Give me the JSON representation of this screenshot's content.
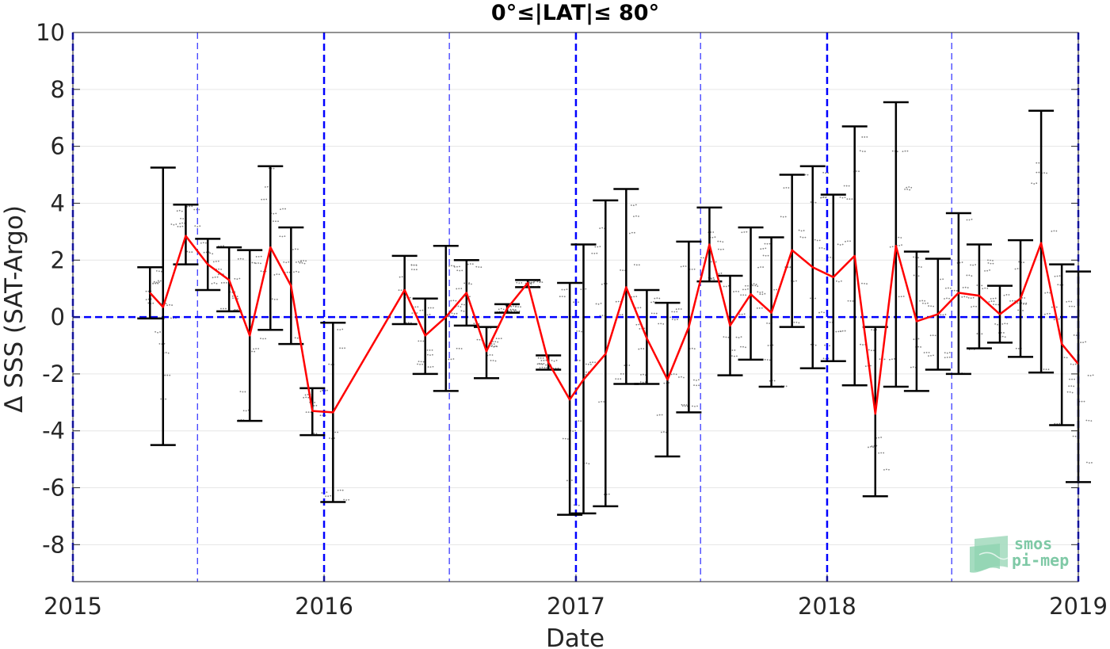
{
  "chart_data": {
    "type": "line",
    "title": "0°≤|LAT|≤ 80°",
    "xlabel": "Date",
    "ylabel": "Δ SSS (SAT-Argo)",
    "xlim": [
      "2015-01-01",
      "2019-01-01"
    ],
    "ylim": [
      -9.3,
      10
    ],
    "xticks": [
      "2015",
      "2016",
      "2017",
      "2018",
      "2019"
    ],
    "yticks": [
      10,
      8,
      6,
      4,
      2,
      0,
      -2,
      -4,
      -6,
      -8
    ],
    "grid": true,
    "zero_line": 0,
    "year_lines": [
      "2015-01-01",
      "2016-01-01",
      "2017-01-01",
      "2018-01-01",
      "2019-01-01"
    ],
    "half_year_lines": [
      "2015-07-01",
      "2016-07-01",
      "2017-07-01",
      "2018-07-01"
    ],
    "colors": {
      "mean": "#ff0000",
      "errorbar": "#000000",
      "reference": "#0000ff",
      "scatter": "#808080"
    },
    "series": [
      {
        "x": [
          "2015-04-23",
          "2015-05-12",
          "2015-06-14",
          "2015-07-16",
          "2015-08-16",
          "2015-09-15",
          "2015-10-15",
          "2015-11-14",
          "2015-12-15",
          "2016-01-14",
          "2016-04-27",
          "2016-05-27",
          "2016-06-26",
          "2016-07-26",
          "2016-08-24",
          "2016-09-23",
          "2016-10-23",
          "2016-11-22",
          "2016-12-23",
          "2017-01-12",
          "2017-02-13",
          "2017-03-15",
          "2017-04-14",
          "2017-05-14",
          "2017-06-14",
          "2017-07-14",
          "2017-08-13",
          "2017-09-12",
          "2017-10-12",
          "2017-11-11",
          "2017-12-11",
          "2018-01-10",
          "2018-02-10",
          "2018-03-12",
          "2018-04-11",
          "2018-05-11",
          "2018-06-11",
          "2018-07-11",
          "2018-08-10",
          "2018-09-09",
          "2018-10-09",
          "2018-11-08",
          "2018-12-08",
          "2019-01-01"
        ],
        "mean": [
          0.85,
          0.35,
          2.85,
          1.85,
          1.3,
          -0.65,
          2.45,
          1.1,
          -3.3,
          -3.35,
          0.95,
          -0.65,
          0.0,
          0.85,
          -1.2,
          0.3,
          1.2,
          -1.6,
          -2.9,
          -2.2,
          -1.3,
          1.05,
          -0.75,
          -2.2,
          -0.35,
          2.55,
          -0.3,
          0.8,
          0.15,
          2.35,
          1.75,
          1.4,
          2.15,
          -3.4,
          2.5,
          -0.15,
          0.1,
          0.85,
          0.75,
          0.1,
          0.65,
          2.6,
          -0.95,
          -1.65
        ],
        "upper": [
          1.75,
          5.25,
          3.95,
          2.75,
          2.45,
          2.35,
          5.3,
          3.15,
          -2.5,
          -0.2,
          2.15,
          0.65,
          2.5,
          2.0,
          -0.35,
          0.45,
          1.3,
          -1.35,
          1.2,
          2.55,
          4.1,
          4.5,
          0.95,
          0.5,
          2.65,
          3.85,
          1.45,
          3.15,
          2.8,
          5.0,
          5.3,
          4.3,
          6.7,
          -0.35,
          7.55,
          2.3,
          2.05,
          3.65,
          2.55,
          1.1,
          2.7,
          7.25,
          1.85,
          1.6
        ],
        "lower": [
          -0.05,
          -4.5,
          1.85,
          0.95,
          0.2,
          -3.65,
          -0.45,
          -0.95,
          -4.15,
          -6.5,
          -0.25,
          -2.0,
          -2.6,
          -0.3,
          -2.15,
          0.15,
          1.05,
          -1.85,
          -6.95,
          -6.9,
          -6.65,
          -2.35,
          -2.35,
          -4.9,
          -3.35,
          1.25,
          -2.05,
          -1.5,
          -2.45,
          -0.35,
          -1.8,
          -1.55,
          -2.4,
          -6.3,
          -2.45,
          -2.6,
          -1.85,
          -2.0,
          -1.1,
          -0.9,
          -1.4,
          -1.95,
          -3.8,
          -5.8
        ]
      }
    ]
  },
  "logo": {
    "line1": "smos",
    "line2": "pi-mep"
  }
}
